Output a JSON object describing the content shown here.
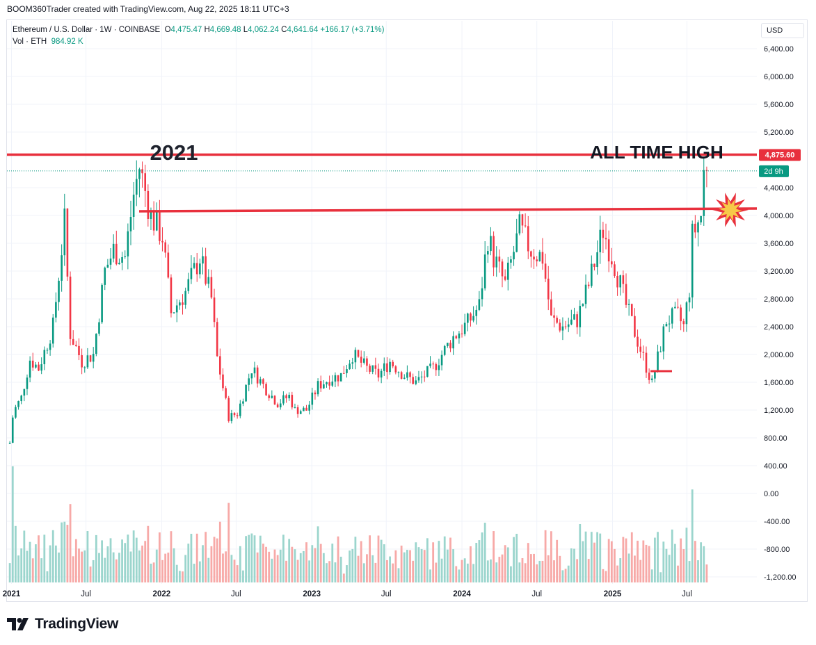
{
  "header": {
    "caption": "BOOM360Trader created with TradingView.com, Aug 22, 2025 18:11 UTC+3"
  },
  "legend": {
    "symbol": "Ethereum / U.S. Dollar · 1W · COINBASE",
    "open_label": "O",
    "open": "4,475.47",
    "high_label": "H",
    "high": "4,669.48",
    "low_label": "L",
    "low": "4,062.24",
    "close_label": "C",
    "close": "4,641.64",
    "change": "+166.17 (+3.71%)",
    "vol_label": "Vol · ETH",
    "vol": "984.92 K"
  },
  "currency_button": "USD",
  "footer": {
    "logo_text": "TradingView",
    "logo_icon": "tradingview-logo-icon"
  },
  "colors": {
    "up": "#089981",
    "down": "#f23645",
    "up_vol": "#9bd5cd",
    "down_vol": "#f7a9a7",
    "annotation": "#e8303d",
    "grid": "#f0f3fa"
  },
  "chart_data": {
    "type": "candlestick",
    "title": "Ethereum / U.S. Dollar · 1W · COINBASE",
    "ylim": [
      -1300,
      6800
    ],
    "y_ticks": [
      "6,400.00",
      "6,000.00",
      "5,600.00",
      "5,200.00",
      "4,400.00",
      "4,000.00",
      "3,600.00",
      "3,200.00",
      "2,800.00",
      "2,400.00",
      "2,000.00",
      "1,600.00",
      "1,200.00",
      "800.00",
      "400.00",
      "0.00",
      "-400.00",
      "-800.00",
      "-1,200.00"
    ],
    "x_ticks": [
      "2021",
      "Jul",
      "2022",
      "Jul",
      "2023",
      "Jul",
      "2024",
      "Jul",
      "2025",
      "Jul"
    ],
    "price_path": [
      [
        "2020-12-28",
        730
      ],
      [
        "2021-01-04",
        1100
      ],
      [
        "2021-01-11",
        1230
      ],
      [
        "2021-01-25",
        1380
      ],
      [
        "2021-02-15",
        1930
      ],
      [
        "2021-03-08",
        1800
      ],
      [
        "2021-04-12",
        2400
      ],
      [
        "2021-05-10",
        3900
      ],
      [
        "2021-05-24",
        2300
      ],
      [
        "2021-06-21",
        1900
      ],
      [
        "2021-07-19",
        2000
      ],
      [
        "2021-08-16",
        3200
      ],
      [
        "2021-09-06",
        3500
      ],
      [
        "2021-10-04",
        3400
      ],
      [
        "2021-10-25",
        4300
      ],
      [
        "2021-11-08",
        4700
      ],
      [
        "2021-12-06",
        4000
      ],
      [
        "2022-01-03",
        3700
      ],
      [
        "2022-01-24",
        2600
      ],
      [
        "2022-02-28",
        2900
      ],
      [
        "2022-04-04",
        3400
      ],
      [
        "2022-05-02",
        2800
      ],
      [
        "2022-05-16",
        1950
      ],
      [
        "2022-06-13",
        1100
      ],
      [
        "2022-07-04",
        1150
      ],
      [
        "2022-08-08",
        1800
      ],
      [
        "2022-09-12",
        1500
      ],
      [
        "2022-10-10",
        1300
      ],
      [
        "2022-11-07",
        1400
      ],
      [
        "2022-11-21",
        1200
      ],
      [
        "2022-12-19",
        1200
      ],
      [
        "2023-01-16",
        1550
      ],
      [
        "2023-02-13",
        1650
      ],
      [
        "2023-03-13",
        1700
      ],
      [
        "2023-04-10",
        2000
      ],
      [
        "2023-05-15",
        1800
      ],
      [
        "2023-06-12",
        1700
      ],
      [
        "2023-07-10",
        1900
      ],
      [
        "2023-08-14",
        1700
      ],
      [
        "2023-09-11",
        1600
      ],
      [
        "2023-10-23",
        1800
      ],
      [
        "2023-11-13",
        2000
      ],
      [
        "2023-12-11",
        2250
      ],
      [
        "2024-01-15",
        2450
      ],
      [
        "2024-02-12",
        2700
      ],
      [
        "2024-03-04",
        3700
      ],
      [
        "2024-03-18",
        3400
      ],
      [
        "2024-04-15",
        3000
      ],
      [
        "2024-05-20",
        3800
      ],
      [
        "2024-06-17",
        3500
      ],
      [
        "2024-07-15",
        3400
      ],
      [
        "2024-08-05",
        2500
      ],
      [
        "2024-09-02",
        2400
      ],
      [
        "2024-10-07",
        2500
      ],
      [
        "2024-11-04",
        3000
      ],
      [
        "2024-12-09",
        3800
      ],
      [
        "2025-01-06",
        3300
      ],
      [
        "2025-02-03",
        2700
      ],
      [
        "2025-03-03",
        2200
      ],
      [
        "2025-04-07",
        1580
      ],
      [
        "2025-05-12",
        2500
      ],
      [
        "2025-06-09",
        2550
      ],
      [
        "2025-06-23",
        2400
      ],
      [
        "2025-07-07",
        2950
      ],
      [
        "2025-07-14",
        3700
      ],
      [
        "2025-08-04",
        4000
      ],
      [
        "2025-08-11",
        4600
      ],
      [
        "2025-08-18",
        4641.64
      ]
    ],
    "volume_axis_offset": 1300,
    "annotations": {
      "ath_label": "ALL TIME HIGH",
      "year_label": "2021",
      "ath_price": 4875.6,
      "ath_price_label": "4,875.60",
      "resistance_level": 4060,
      "current_price": 4641.64,
      "countdown_label": "2d 9h",
      "support_level": 1760
    }
  }
}
